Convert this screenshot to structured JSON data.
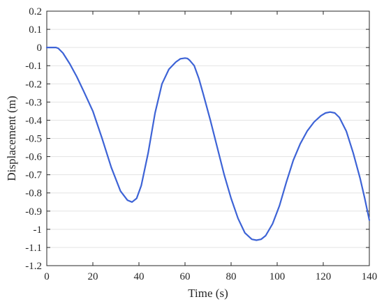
{
  "chart_data": {
    "type": "line",
    "xlabel": "Time (s)",
    "ylabel": "Displacement (m)",
    "xlim": [
      0,
      140
    ],
    "ylim": [
      -1.2,
      0.2
    ],
    "x_ticks": [
      0,
      20,
      40,
      60,
      80,
      100,
      120,
      140
    ],
    "y_ticks": [
      0.2,
      0.1,
      0,
      -0.1,
      -0.2,
      -0.3,
      -0.4,
      -0.5,
      -0.6,
      -0.7,
      -0.8,
      -0.9,
      -1,
      -1.1,
      -1.2
    ],
    "grid": "horizontal",
    "series_color": "#3d63d6",
    "series": [
      {
        "x": [
          0,
          2,
          4,
          5,
          7,
          10,
          13,
          16,
          20,
          24,
          28,
          32,
          35,
          37,
          39,
          41,
          44,
          47,
          50,
          53,
          56,
          58,
          60,
          61,
          62,
          64,
          66,
          68,
          71,
          74,
          77,
          80,
          83,
          86,
          89,
          91,
          93,
          95,
          98,
          101,
          104,
          107,
          110,
          113,
          116,
          119,
          121,
          123,
          125,
          127,
          130,
          133,
          136,
          138,
          140
        ],
        "y": [
          0,
          0,
          0,
          -0.005,
          -0.03,
          -0.09,
          -0.16,
          -0.24,
          -0.35,
          -0.5,
          -0.66,
          -0.79,
          -0.84,
          -0.85,
          -0.83,
          -0.76,
          -0.58,
          -0.36,
          -0.2,
          -0.12,
          -0.08,
          -0.062,
          -0.058,
          -0.06,
          -0.07,
          -0.1,
          -0.17,
          -0.26,
          -0.4,
          -0.55,
          -0.7,
          -0.83,
          -0.94,
          -1.02,
          -1.055,
          -1.06,
          -1.055,
          -1.035,
          -0.97,
          -0.87,
          -0.74,
          -0.62,
          -0.53,
          -0.46,
          -0.41,
          -0.375,
          -0.36,
          -0.355,
          -0.36,
          -0.385,
          -0.46,
          -0.58,
          -0.72,
          -0.83,
          -0.95
        ]
      }
    ]
  }
}
